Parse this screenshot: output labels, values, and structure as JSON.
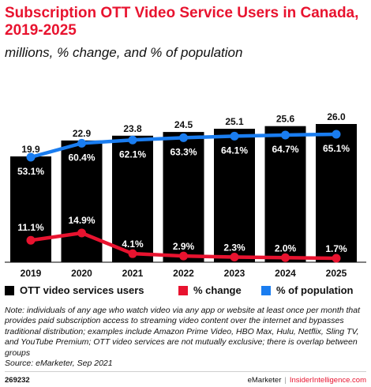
{
  "chart_data": {
    "type": "bar",
    "title": "Subscription OTT Video Service Users in Canada, 2019-2025",
    "subtitle": "millions, % change, and % of population",
    "categories": [
      "2019",
      "2020",
      "2021",
      "2022",
      "2023",
      "2024",
      "2025"
    ],
    "series": [
      {
        "name": "OTT video services users",
        "type": "bar",
        "color": "#000000",
        "values": [
          19.9,
          22.9,
          23.8,
          24.5,
          25.1,
          25.6,
          26.0
        ],
        "labels": [
          "19.9",
          "22.9",
          "23.8",
          "24.5",
          "25.1",
          "25.6",
          "26.0"
        ]
      },
      {
        "name": "% change",
        "type": "line",
        "color": "#e8132f",
        "values": [
          11.1,
          14.9,
          4.1,
          2.9,
          2.3,
          2.0,
          1.7
        ],
        "labels": [
          "11.1%",
          "14.9%",
          "4.1%",
          "2.9%",
          "2.3%",
          "2.0%",
          "1.7%"
        ]
      },
      {
        "name": "% of population",
        "type": "line",
        "color": "#1a7df0",
        "values": [
          53.1,
          60.4,
          62.1,
          63.3,
          64.1,
          64.7,
          65.1
        ],
        "labels": [
          "53.1%",
          "60.4%",
          "62.1%",
          "63.3%",
          "64.1%",
          "64.7%",
          "65.1%"
        ]
      }
    ],
    "legend_position": "bottom",
    "grid": false
  },
  "note": "Note: individuals of any age who watch video via any app or website at least once per month that provides paid subscription access to streaming video content over the internet and bypasses traditional distribution; examples include Amazon Prime Video, HBO Max, Hulu, Netflix, Sling TV, and YouTube Premium; OTT video services are not mutually exclusive; there is overlap between groups",
  "source": "Source: eMarketer, Sep 2021",
  "footer": {
    "id": "269232",
    "brand": "eMarketer",
    "separator": "|",
    "brand2": "InsiderIntelligence.com"
  }
}
